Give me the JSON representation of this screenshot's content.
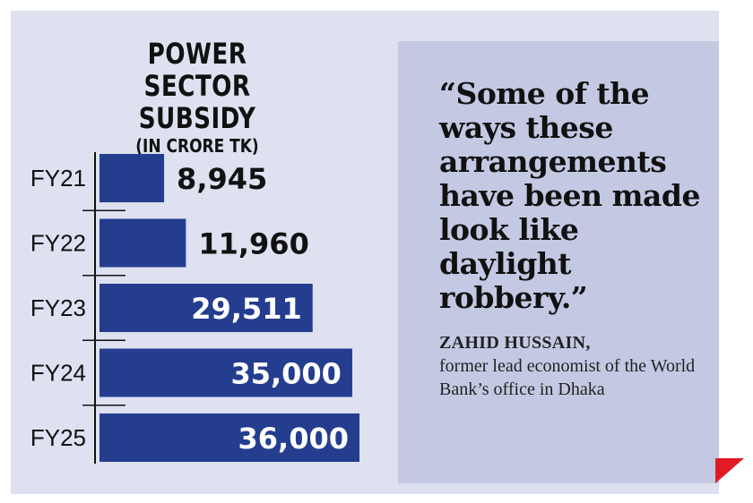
{
  "chart_data": {
    "type": "bar",
    "orientation": "horizontal",
    "title": "POWER SECTOR SUBSIDY",
    "subtitle": "(IN CRORE TK)",
    "categories": [
      "FY21",
      "FY22",
      "FY23",
      "FY24",
      "FY25"
    ],
    "values": [
      8945,
      11960,
      29511,
      35000,
      36000
    ],
    "value_labels": [
      "8,945",
      "11,960",
      "29,511",
      "35,000",
      "36,000"
    ],
    "bar_color": "#243d8f",
    "grid": false,
    "legend": "none"
  },
  "quote": {
    "text": "“Some of the ways these arrangements have been made look like daylight robbery.”",
    "author": "ZAHID HUSSAIN,",
    "author_role": "former lead economist of the World Bank’s office in Dhaka"
  },
  "colors": {
    "panel_background": "#dde1f0",
    "quote_background": "#c3c9e3",
    "corner_accent": "#e01b24"
  }
}
